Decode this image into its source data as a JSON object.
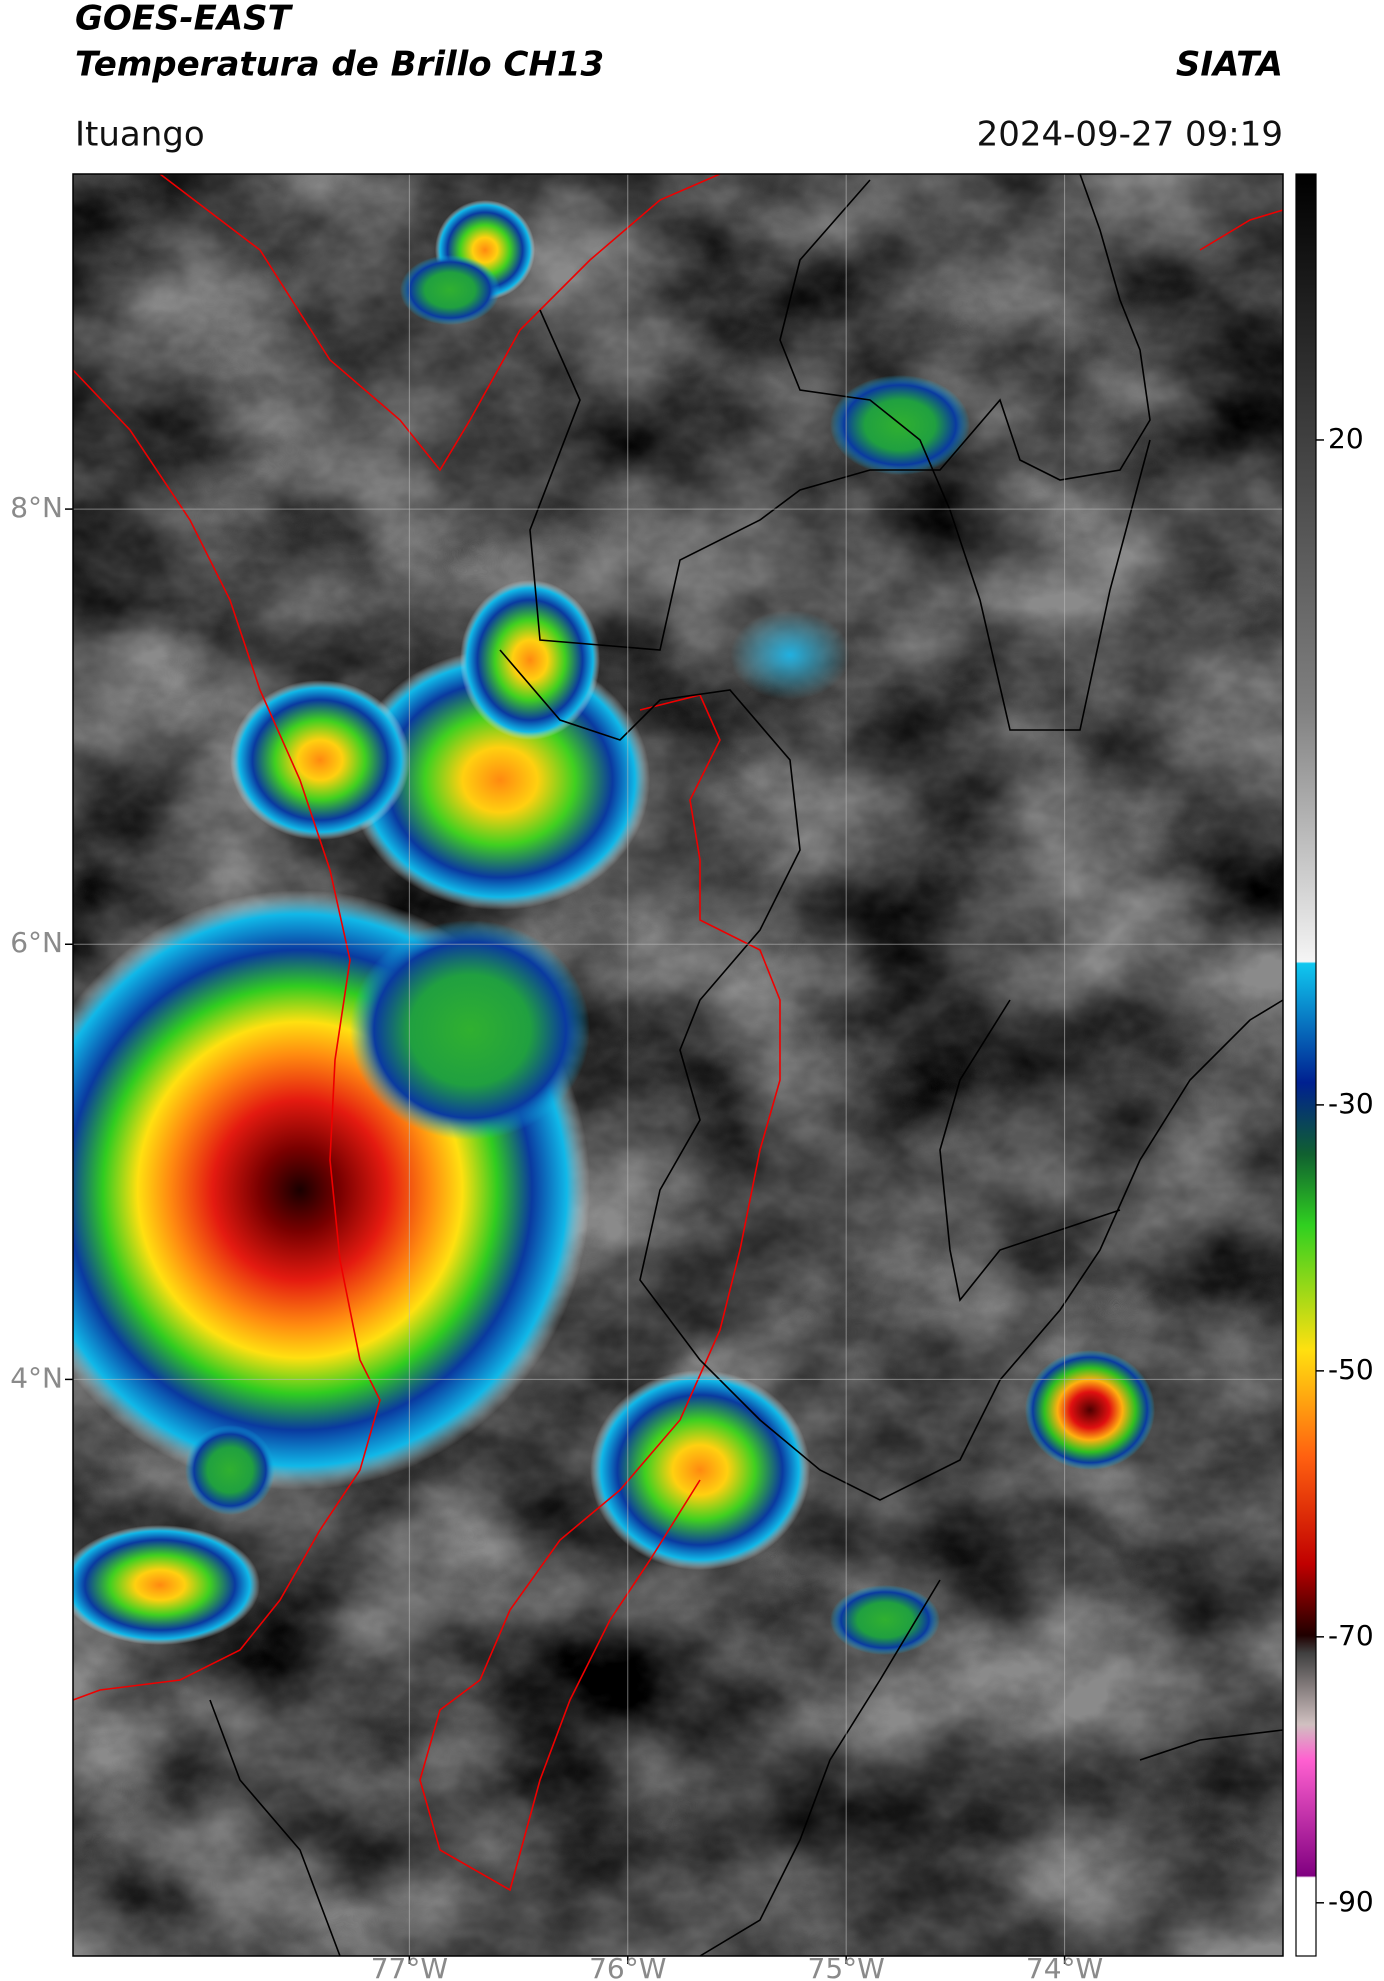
{
  "header": {
    "title": "GOES-EAST",
    "subtitle": "Temperatura de Brillo CH13",
    "source": "SIATA",
    "location": "Ituango",
    "datetime": "2024-09-27 09:19"
  },
  "map": {
    "latlim": [
      1.35,
      9.54
    ],
    "lonlim": [
      -78.54,
      -73.0
    ],
    "grid": true,
    "lat_ticks": [
      {
        "value": 8,
        "label": "8°N"
      },
      {
        "value": 6,
        "label": "6°N"
      },
      {
        "value": 4,
        "label": "4°N"
      }
    ],
    "lon_ticks": [
      {
        "value": -77,
        "label": "77°W"
      },
      {
        "value": -76,
        "label": "76°W"
      },
      {
        "value": -75,
        "label": "75°W"
      },
      {
        "value": -74,
        "label": "74°W"
      }
    ]
  },
  "colorbar": {
    "lim": [
      -94,
      40
    ],
    "ticks": [
      20,
      -30,
      -50,
      -70,
      -90
    ]
  }
}
